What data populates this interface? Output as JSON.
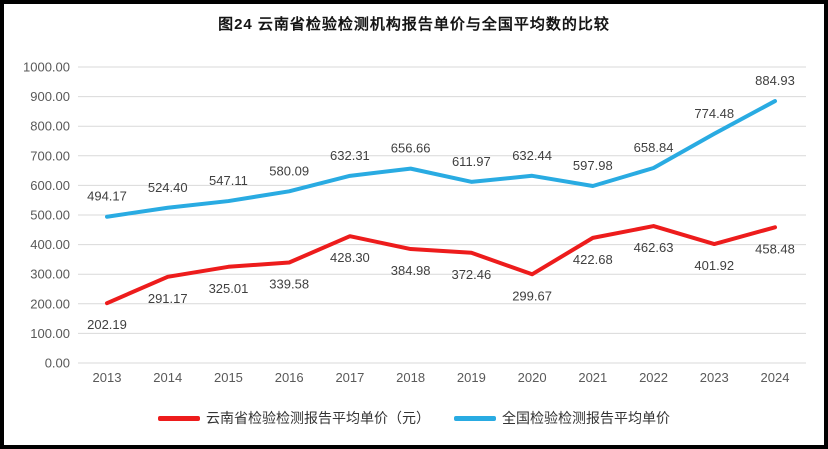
{
  "chart_data": {
    "type": "line",
    "title": "图24 云南省检验检测机构报告单价与全国平均数的比较",
    "categories": [
      "2013",
      "2014",
      "2015",
      "2016",
      "2017",
      "2018",
      "2019",
      "2020",
      "2021",
      "2022",
      "2023",
      "2024"
    ],
    "series": [
      {
        "name": "云南省检验检测报告平均单价（元）",
        "color": "#ed1c1c",
        "label_position": "below",
        "values": [
          202.19,
          291.17,
          325.01,
          339.58,
          428.3,
          384.98,
          372.46,
          299.67,
          422.68,
          462.63,
          401.92,
          458.48
        ]
      },
      {
        "name": "全国检验检测报告平均单价",
        "color": "#29abe2",
        "label_position": "above",
        "values": [
          494.17,
          524.4,
          547.11,
          580.09,
          632.31,
          656.66,
          611.97,
          632.44,
          597.98,
          658.84,
          774.48,
          884.93
        ]
      }
    ],
    "ylim": [
      0,
      1000
    ],
    "ytick_step": 100,
    "y_tick_labels": [
      "0.00",
      "100.00",
      "200.00",
      "300.00",
      "400.00",
      "500.00",
      "600.00",
      "700.00",
      "800.00",
      "900.00",
      "1000.00"
    ],
    "grid": true,
    "legend_position": "bottom",
    "xlabel": "",
    "ylabel": ""
  },
  "colors": {
    "grid": "#d9d9d9",
    "axis_text": "#595959",
    "data_label": "#404040",
    "frame_border": "#000000",
    "background": "#ffffff"
  }
}
